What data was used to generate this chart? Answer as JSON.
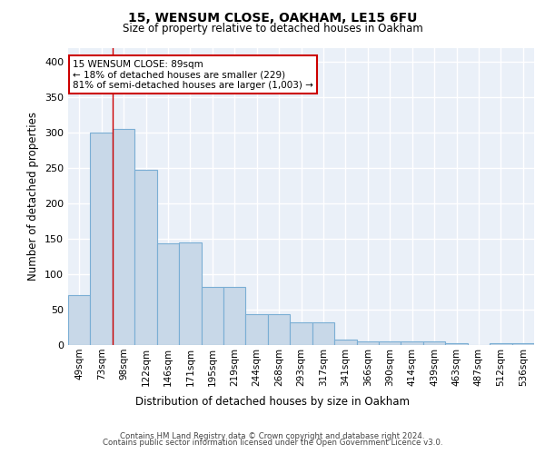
{
  "title1": "15, WENSUM CLOSE, OAKHAM, LE15 6FU",
  "title2": "Size of property relative to detached houses in Oakham",
  "xlabel": "Distribution of detached houses by size in Oakham",
  "ylabel": "Number of detached properties",
  "categories": [
    "49sqm",
    "73sqm",
    "98sqm",
    "122sqm",
    "146sqm",
    "171sqm",
    "195sqm",
    "219sqm",
    "244sqm",
    "268sqm",
    "293sqm",
    "317sqm",
    "341sqm",
    "366sqm",
    "390sqm",
    "414sqm",
    "439sqm",
    "463sqm",
    "487sqm",
    "512sqm",
    "536sqm"
  ],
  "bar_heights": [
    70,
    300,
    305,
    248,
    143,
    145,
    82,
    82,
    44,
    44,
    32,
    32,
    8,
    5,
    5,
    5,
    5,
    3,
    0,
    3,
    3
  ],
  "bar_color": "#c8d8e8",
  "bar_edge_color": "#7aaed4",
  "red_line_x": 1.5,
  "annotation_text": "15 WENSUM CLOSE: 89sqm\n← 18% of detached houses are smaller (229)\n81% of semi-detached houses are larger (1,003) →",
  "footer1": "Contains HM Land Registry data © Crown copyright and database right 2024.",
  "footer2": "Contains public sector information licensed under the Open Government Licence v3.0.",
  "bg_color": "#eaf0f8",
  "grid_color": "#ffffff",
  "ylim": [
    0,
    420
  ],
  "yticks": [
    0,
    50,
    100,
    150,
    200,
    250,
    300,
    350,
    400
  ]
}
